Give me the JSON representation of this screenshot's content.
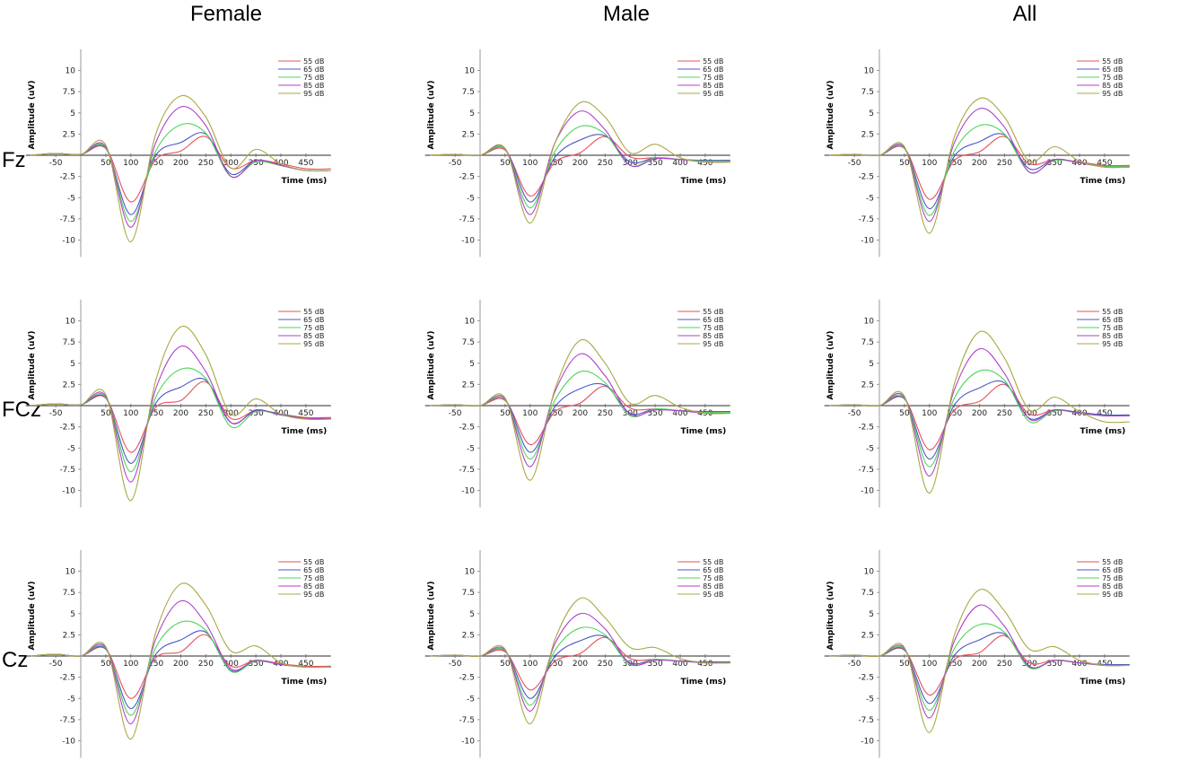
{
  "columns": [
    "Female",
    "Male",
    "All"
  ],
  "rows": [
    "Fz",
    "FCz",
    "Cz"
  ],
  "colors": {
    "55 dB": "#e8505a",
    "65 dB": "#4a58c8",
    "75 dB": "#4ed45a",
    "85 dB": "#b040c8",
    "95 dB": "#a8a844"
  },
  "axis": {
    "ylabel": "Amplitude (uV)",
    "xlabel": "Time (ms)",
    "xticks": [
      -50,
      50,
      100,
      150,
      200,
      250,
      300,
      350,
      400,
      450
    ],
    "yticks": [
      10,
      7.5,
      5,
      2.5,
      -2.5,
      -5,
      -7.5,
      -10
    ],
    "xlim": [
      -100,
      500
    ],
    "ylim": [
      -12,
      12
    ]
  },
  "chart_data": [
    {
      "type": "line",
      "panel": "Female / Fz",
      "x": [
        -100,
        -50,
        0,
        50,
        100,
        150,
        200,
        250,
        300,
        350,
        400,
        450,
        500
      ],
      "series": [
        {
          "name": "55 dB",
          "values": [
            0,
            0.2,
            0.1,
            0.8,
            -5.5,
            -0.5,
            0.5,
            2.2,
            -1.5,
            -0.6,
            -1,
            -1.6,
            -1.6
          ]
        },
        {
          "name": "65 dB",
          "values": [
            0,
            0.2,
            0.1,
            0.8,
            -7,
            0,
            1.5,
            2.5,
            -2.2,
            -0.6,
            -1.2,
            -1.8,
            -1.8
          ]
        },
        {
          "name": "75 dB",
          "values": [
            0,
            0.2,
            0.1,
            0.9,
            -7.8,
            0.5,
            3.6,
            2.6,
            -2.5,
            -0.8,
            -1.2,
            -1.8,
            -1.8
          ]
        },
        {
          "name": "85 dB",
          "values": [
            0,
            0.2,
            0.1,
            1,
            -8.5,
            1.5,
            5.7,
            3.5,
            -2.5,
            -0.6,
            -1.2,
            -1.8,
            -1.8
          ]
        },
        {
          "name": "95 dB",
          "values": [
            0,
            0.2,
            0.1,
            1.2,
            -10.2,
            2.5,
            7,
            4.5,
            -1.5,
            0.7,
            -1,
            -1.8,
            -1.8
          ]
        }
      ]
    },
    {
      "type": "line",
      "panel": "Male / Fz",
      "x": [
        -100,
        -50,
        0,
        50,
        100,
        150,
        200,
        250,
        300,
        350,
        400,
        450,
        500
      ],
      "series": [
        {
          "name": "55 dB",
          "values": [
            0,
            0.1,
            0,
            0.6,
            -4.8,
            -0.8,
            0.3,
            2.2,
            -0.2,
            -0.3,
            -0.5,
            -0.6,
            -0.6
          ]
        },
        {
          "name": "65 dB",
          "values": [
            0,
            0.1,
            0,
            0.7,
            -5.5,
            -0.2,
            1.8,
            2.3,
            -0.8,
            -0.3,
            -0.5,
            -0.6,
            -0.6
          ]
        },
        {
          "name": "75 dB",
          "values": [
            0,
            0.1,
            0,
            0.7,
            -6.2,
            0.5,
            3.4,
            2.5,
            -1.2,
            -0.3,
            -0.5,
            -0.7,
            -0.7
          ]
        },
        {
          "name": "85 dB",
          "values": [
            0,
            0.1,
            0,
            0.8,
            -7,
            1.5,
            5.2,
            3,
            -1.2,
            -0.4,
            -0.5,
            -0.8,
            -0.8
          ]
        },
        {
          "name": "95 dB",
          "values": [
            0,
            0.1,
            0,
            0.8,
            -8,
            1.5,
            6.2,
            4.5,
            0.3,
            1.3,
            -0.3,
            -0.8,
            -0.8
          ]
        }
      ]
    },
    {
      "type": "line",
      "panel": "All / Fz",
      "x": [
        -100,
        -50,
        0,
        50,
        100,
        150,
        200,
        250,
        300,
        350,
        400,
        450,
        500
      ],
      "series": [
        {
          "name": "55 dB",
          "values": [
            0,
            0.1,
            0,
            0.8,
            -5.2,
            -0.6,
            0.4,
            2.2,
            -1,
            -0.5,
            -0.8,
            -1.2,
            -1.2
          ]
        },
        {
          "name": "65 dB",
          "values": [
            0,
            0.1,
            0,
            0.8,
            -6.3,
            -0.1,
            1.6,
            2.4,
            -1.6,
            -0.5,
            -0.9,
            -1.3,
            -1.3
          ]
        },
        {
          "name": "75 dB",
          "values": [
            0,
            0.1,
            0,
            0.8,
            -7.1,
            0.5,
            3.5,
            2.5,
            -2,
            -0.6,
            -0.9,
            -1.3,
            -1.3
          ]
        },
        {
          "name": "85 dB",
          "values": [
            0,
            0.1,
            0,
            0.9,
            -7.8,
            1.5,
            5.5,
            3.3,
            -2,
            -0.5,
            -0.9,
            -1.4,
            -1.4
          ]
        },
        {
          "name": "95 dB",
          "values": [
            0,
            0.1,
            0,
            1,
            -9.2,
            2.2,
            6.7,
            4.5,
            -0.7,
            1,
            -0.7,
            -1.4,
            -1.4
          ]
        }
      ]
    },
    {
      "type": "line",
      "panel": "Female / FCz",
      "x": [
        -100,
        -50,
        0,
        50,
        100,
        150,
        200,
        250,
        300,
        350,
        400,
        450,
        500
      ],
      "series": [
        {
          "name": "55 dB",
          "values": [
            0,
            0.2,
            0.1,
            0.9,
            -5.5,
            -0.2,
            0.6,
            2.8,
            -1.5,
            -0.6,
            -1,
            -1.4,
            -1.4
          ]
        },
        {
          "name": "65 dB",
          "values": [
            0,
            0.2,
            0.1,
            0.9,
            -6.8,
            0.3,
            2.2,
            3,
            -2,
            -0.6,
            -1,
            -1.5,
            -1.5
          ]
        },
        {
          "name": "75 dB",
          "values": [
            0,
            0.2,
            0.1,
            1,
            -7.8,
            1,
            4.3,
            3.2,
            -2.5,
            -0.7,
            -1.1,
            -1.5,
            -1.5
          ]
        },
        {
          "name": "85 dB",
          "values": [
            0,
            0.2,
            0.1,
            1.1,
            -9,
            2,
            7,
            4,
            -2,
            -0.5,
            -1.1,
            -1.5,
            -1.5
          ]
        },
        {
          "name": "95 dB",
          "values": [
            0,
            0.2,
            0.1,
            1.3,
            -11.2,
            3,
            9.3,
            6,
            -1,
            0.8,
            -1,
            -1.6,
            -1.6
          ]
        }
      ]
    },
    {
      "type": "line",
      "panel": "Male / FCz",
      "x": [
        -100,
        -50,
        0,
        50,
        100,
        150,
        200,
        250,
        300,
        350,
        400,
        450,
        500
      ],
      "series": [
        {
          "name": "55 dB",
          "values": [
            0,
            0.1,
            0,
            0.6,
            -4.6,
            -0.7,
            0.3,
            2.3,
            -0.3,
            -0.4,
            -0.6,
            -0.7,
            -0.7
          ]
        },
        {
          "name": "65 dB",
          "values": [
            0,
            0.1,
            0,
            0.7,
            -5.5,
            -0.1,
            2,
            2.4,
            -0.9,
            -0.4,
            -0.6,
            -0.7,
            -0.7
          ]
        },
        {
          "name": "75 dB",
          "values": [
            0,
            0.1,
            0,
            0.7,
            -6.3,
            0.7,
            4,
            2.7,
            -1.2,
            -0.4,
            -0.6,
            -0.8,
            -0.8
          ]
        },
        {
          "name": "85 dB",
          "values": [
            0,
            0.1,
            0,
            0.8,
            -7.2,
            1.7,
            6.1,
            3.5,
            -1,
            -0.5,
            -0.6,
            -0.9,
            -0.9
          ]
        },
        {
          "name": "95 dB",
          "values": [
            0,
            0.1,
            0,
            0.9,
            -8.8,
            2,
            7.7,
            5,
            0.3,
            1.2,
            -0.2,
            -0.9,
            -0.9
          ]
        }
      ]
    },
    {
      "type": "line",
      "panel": "All / FCz",
      "x": [
        -100,
        -50,
        0,
        50,
        100,
        150,
        200,
        250,
        300,
        350,
        400,
        450,
        500
      ],
      "series": [
        {
          "name": "55 dB",
          "values": [
            0,
            0.1,
            0,
            0.8,
            -5.2,
            -0.5,
            0.5,
            2.5,
            -1,
            -0.5,
            -0.8,
            -1.1,
            -1.1
          ]
        },
        {
          "name": "65 dB",
          "values": [
            0,
            0.1,
            0,
            0.8,
            -6.3,
            0.1,
            2.1,
            2.7,
            -1.5,
            -0.5,
            -0.8,
            -1.1,
            -1.1
          ]
        },
        {
          "name": "75 dB",
          "values": [
            0,
            0.1,
            0,
            0.9,
            -7.2,
            0.9,
            4.1,
            3,
            -1.9,
            -0.6,
            -0.9,
            -1.2,
            -1.2
          ]
        },
        {
          "name": "85 dB",
          "values": [
            0,
            0.1,
            0,
            1,
            -8.3,
            1.9,
            6.7,
            3.8,
            -1.6,
            -0.5,
            -0.9,
            -1.2,
            -1.2
          ]
        },
        {
          "name": "95 dB",
          "values": [
            0,
            0.1,
            0,
            1.1,
            -10.3,
            2.6,
            8.7,
            5.6,
            -0.5,
            1,
            -0.7,
            -1.9,
            -1.9
          ]
        }
      ]
    },
    {
      "type": "line",
      "panel": "Female / Cz",
      "x": [
        -100,
        -50,
        0,
        50,
        100,
        150,
        200,
        250,
        300,
        350,
        400,
        450,
        500
      ],
      "series": [
        {
          "name": "55 dB",
          "values": [
            0,
            0.2,
            0,
            0.8,
            -5,
            -0.2,
            0.5,
            2.5,
            -1.2,
            -0.5,
            -0.9,
            -1.2,
            -1.2
          ]
        },
        {
          "name": "65 dB",
          "values": [
            0,
            0.2,
            0,
            0.8,
            -6.2,
            0.2,
            1.9,
            2.8,
            -1.7,
            -0.6,
            -1,
            -1.3,
            -1.3
          ]
        },
        {
          "name": "75 dB",
          "values": [
            0,
            0.2,
            0,
            0.9,
            -7,
            1,
            4,
            3,
            -1.8,
            -0.6,
            -1,
            -1.3,
            -1.3
          ]
        },
        {
          "name": "85 dB",
          "values": [
            0,
            0.2,
            0,
            1,
            -8,
            2,
            6.5,
            3.8,
            -1.5,
            -0.5,
            -1,
            -1.3,
            -1.3
          ]
        },
        {
          "name": "95 dB",
          "values": [
            0,
            0.2,
            0,
            1.1,
            -9.8,
            2.8,
            8.5,
            6,
            0.6,
            1.2,
            -0.8,
            -1.3,
            -1.3
          ]
        }
      ]
    },
    {
      "type": "line",
      "panel": "Male / Cz",
      "x": [
        -100,
        -50,
        0,
        50,
        100,
        150,
        200,
        250,
        300,
        350,
        400,
        450,
        500
      ],
      "series": [
        {
          "name": "55 dB",
          "values": [
            0,
            0.1,
            0,
            0.5,
            -4,
            -0.6,
            0.3,
            2.2,
            -0.3,
            -0.4,
            -0.6,
            -0.7,
            -0.7
          ]
        },
        {
          "name": "65 dB",
          "values": [
            0,
            0.1,
            0,
            0.6,
            -5,
            0,
            1.8,
            2.3,
            -0.8,
            -0.4,
            -0.6,
            -0.7,
            -0.7
          ]
        },
        {
          "name": "75 dB",
          "values": [
            0,
            0.1,
            0,
            0.6,
            -5.8,
            0.7,
            3.3,
            2.5,
            -1,
            -0.4,
            -0.6,
            -0.8,
            -0.8
          ]
        },
        {
          "name": "85 dB",
          "values": [
            0,
            0.1,
            0,
            0.7,
            -6.5,
            1.5,
            5,
            3.2,
            -0.9,
            -0.5,
            -0.6,
            -0.8,
            -0.8
          ]
        },
        {
          "name": "95 dB",
          "values": [
            0,
            0.1,
            0,
            0.8,
            -8,
            2,
            6.8,
            4.5,
            1,
            1,
            -0.3,
            -0.8,
            -0.8
          ]
        }
      ]
    },
    {
      "type": "line",
      "panel": "All / Cz",
      "x": [
        -100,
        -50,
        0,
        50,
        100,
        150,
        200,
        250,
        300,
        350,
        400,
        450,
        500
      ],
      "series": [
        {
          "name": "55 dB",
          "values": [
            0,
            0.1,
            0,
            0.7,
            -4.6,
            -0.4,
            0.4,
            2.4,
            -0.8,
            -0.5,
            -0.8,
            -1,
            -1
          ]
        },
        {
          "name": "65 dB",
          "values": [
            0,
            0.1,
            0,
            0.7,
            -5.6,
            0.1,
            1.9,
            2.6,
            -1.3,
            -0.5,
            -0.8,
            -1,
            -1
          ]
        },
        {
          "name": "75 dB",
          "values": [
            0,
            0.1,
            0,
            0.8,
            -6.4,
            0.9,
            3.7,
            2.8,
            -1.4,
            -0.5,
            -0.8,
            -1.1,
            -1.1
          ]
        },
        {
          "name": "85 dB",
          "values": [
            0,
            0.1,
            0,
            0.9,
            -7.3,
            1.8,
            6,
            3.5,
            -1.2,
            -0.5,
            -0.8,
            -1.1,
            -1.1
          ]
        },
        {
          "name": "95 dB",
          "values": [
            0,
            0.1,
            0,
            1,
            -9,
            2.5,
            7.8,
            5.3,
            0.8,
            1.1,
            -0.5,
            -1.1,
            -1.1
          ]
        }
      ]
    }
  ]
}
